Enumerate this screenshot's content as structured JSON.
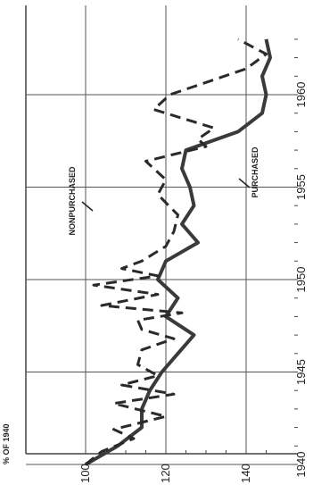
{
  "chart_data": {
    "type": "line",
    "title": "",
    "xlabel": "",
    "ylabel": "% OF 1940",
    "xlim": [
      1940,
      1963
    ],
    "ylim": [
      100,
      148
    ],
    "grid": true,
    "x_ticks": [
      1940,
      1945,
      1950,
      1955,
      1960
    ],
    "y_ticks": [
      100,
      120,
      140
    ],
    "series": [
      {
        "name": "NONPURCHASED",
        "style": "solid",
        "color": "#3a3a3a",
        "x": [
          1940,
          1941,
          1942,
          1943,
          1944,
          1945,
          1946,
          1947,
          1948,
          1949,
          1950,
          1951,
          1952,
          1953,
          1954,
          1955,
          1956,
          1957,
          1958,
          1959,
          1960,
          1961,
          1962,
          1963
        ],
        "y": [
          100,
          108,
          114,
          114,
          116,
          119,
          123,
          127,
          120,
          123,
          118,
          120,
          128,
          124,
          127,
          126,
          124,
          125,
          138,
          144,
          145,
          144,
          146,
          145
        ]
      },
      {
        "name": "PURCHASED",
        "style": "dashed",
        "color": "#2a2a2a",
        "x": [
          1940,
          1940.7,
          1941.4,
          1941.9,
          1942.6,
          1943.3,
          1943.8,
          1944.3,
          1944.8,
          1945.4,
          1946.2,
          1946.8,
          1947.3,
          1947.8,
          1948.2,
          1948.6,
          1949.2,
          1949.7,
          1950.2,
          1950.6,
          1951,
          1951.8,
          1952.6,
          1953.5,
          1954.6,
          1955.4,
          1956.4,
          1957.2,
          1957.6,
          1958.2,
          1959.2,
          1960,
          1961.4,
          1962.2,
          1963
        ],
        "y": [
          100,
          104,
          112,
          107,
          120,
          107,
          122,
          109,
          118,
          113,
          114,
          122,
          114,
          113,
          124,
          104,
          118,
          102,
          118,
          109,
          114,
          120,
          122,
          123,
          118,
          120,
          115,
          130,
          128,
          132,
          117,
          121,
          140,
          145,
          138
        ]
      }
    ],
    "annotations": [
      {
        "text": "NONPURCHASED",
        "series": 0
      },
      {
        "text": "PURCHASED",
        "series": 1
      }
    ]
  }
}
